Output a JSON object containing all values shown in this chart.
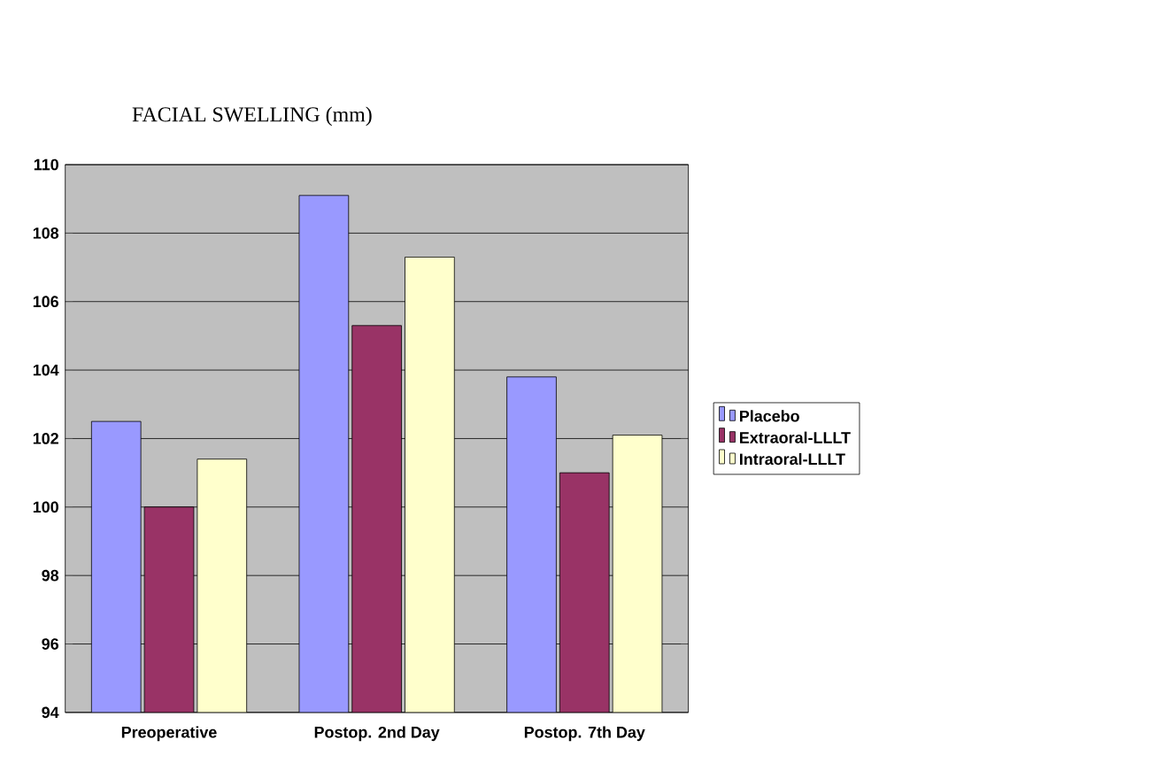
{
  "chart_data": {
    "type": "bar",
    "title": "FACIAL SWELLING (mm)",
    "categories": [
      "Preoperative",
      "Postop. 2nd Day",
      "Postop. 7th Day"
    ],
    "series": [
      {
        "name": "Placebo",
        "color": "#9999ff",
        "values": [
          102.5,
          109.1,
          103.8
        ]
      },
      {
        "name": "Extraoral-LLLT",
        "color": "#993366",
        "values": [
          100.0,
          105.3,
          101.0
        ]
      },
      {
        "name": "Intraoral-LLLT",
        "color": "#ffffcc",
        "values": [
          101.4,
          107.3,
          102.1
        ]
      }
    ],
    "ylim": [
      94,
      110
    ],
    "yticks": [
      94,
      96,
      98,
      100,
      102,
      104,
      106,
      108,
      110
    ],
    "grid": "y",
    "legend": "right"
  }
}
